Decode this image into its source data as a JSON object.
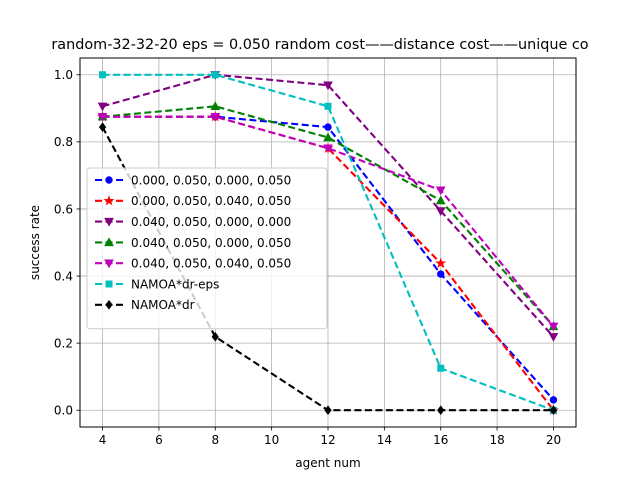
{
  "chart_data": {
    "type": "line",
    "title": "random-32-32-20    eps = 0.050    random cost——distance cost——unique co",
    "xlabel": "agent num",
    "ylabel": "success rate",
    "x": [
      4,
      8,
      12,
      16,
      20
    ],
    "xlim": [
      3.2,
      20.8
    ],
    "ylim": [
      -0.05,
      1.05
    ],
    "xticks": [
      4,
      6,
      8,
      10,
      12,
      14,
      16,
      18,
      20
    ],
    "xtick_labels": [
      "4",
      "6",
      "8",
      "10",
      "12",
      "14",
      "16",
      "18",
      "20"
    ],
    "yticks": [
      0.0,
      0.2,
      0.4,
      0.6,
      0.8,
      1.0
    ],
    "ytick_labels": [
      "0.0",
      "0.2",
      "0.4",
      "0.6",
      "0.8",
      "1.0"
    ],
    "grid": true,
    "legend_position": "center-left",
    "series": [
      {
        "name": "0.000, 0.050, 0.000, 0.050",
        "color": "#0000ff",
        "marker": "circle",
        "values": [
          0.875,
          0.875,
          0.844,
          0.406,
          0.031
        ]
      },
      {
        "name": "0.000, 0.050, 0.040, 0.050",
        "color": "#ff0000",
        "marker": "star",
        "values": [
          0.875,
          0.875,
          0.781,
          0.438,
          0.0
        ]
      },
      {
        "name": "0.040, 0.050, 0.000, 0.000",
        "color": "#800080",
        "marker": "triangle-down",
        "values": [
          0.906,
          1.0,
          0.969,
          0.594,
          0.219
        ]
      },
      {
        "name": "0.040, 0.050, 0.000, 0.050",
        "color": "#008000",
        "marker": "triangle-up",
        "values": [
          0.875,
          0.906,
          0.813,
          0.625,
          0.25
        ]
      },
      {
        "name": "0.040, 0.050, 0.040, 0.050",
        "color": "#bf00bf",
        "marker": "triangle-down",
        "values": [
          0.875,
          0.875,
          0.781,
          0.656,
          0.25
        ]
      },
      {
        "name": "NAMOA*dr-eps",
        "color": "#00bfbf",
        "marker": "square",
        "values": [
          1.0,
          1.0,
          0.906,
          0.125,
          0.0
        ]
      },
      {
        "name": "NAMOA*dr",
        "color": "#000000",
        "marker": "diamond",
        "values": [
          0.844,
          0.219,
          0.0,
          0.0,
          0.0
        ]
      }
    ]
  }
}
